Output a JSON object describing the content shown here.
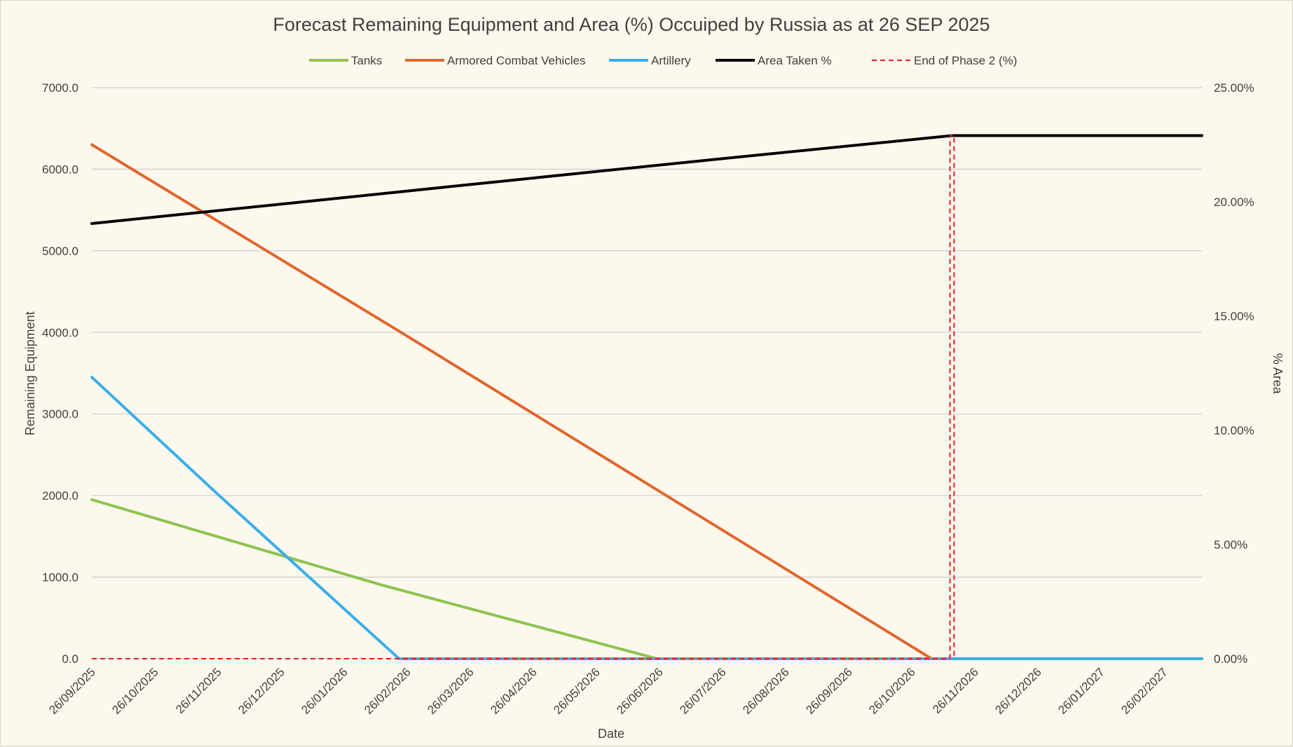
{
  "chart_data": {
    "type": "line",
    "title": "Forecast Remaining Equipment and Area (%) Occuiped by Russia as at 26 SEP 2025",
    "xlabel": "Date",
    "ylabel": "Remaining Equipment",
    "y2label": "% Area",
    "ylim": [
      0,
      7000
    ],
    "y2lim": [
      0,
      25
    ],
    "y_ticks": [
      "0.0",
      "1000.0",
      "2000.0",
      "3000.0",
      "4000.0",
      "5000.0",
      "6000.0",
      "7000.0"
    ],
    "y2_ticks": [
      "0.00%",
      "5.00%",
      "10.00%",
      "15.00%",
      "20.00%",
      "25.00%"
    ],
    "x_ticks": [
      "26/09/2025",
      "26/10/2025",
      "26/11/2025",
      "26/12/2025",
      "26/01/2026",
      "26/02/2026",
      "26/03/2026",
      "26/04/2026",
      "26/05/2026",
      "26/06/2026",
      "26/07/2026",
      "26/08/2026",
      "26/09/2026",
      "26/10/2026",
      "26/11/2026",
      "26/12/2026",
      "26/01/2027",
      "26/02/2027"
    ],
    "x_range_days": [
      0,
      542
    ],
    "legend_position": "top",
    "series": [
      {
        "name": "Tanks",
        "axis": "left",
        "color": "#8dc44e",
        "dash": false,
        "width": 4,
        "points": [
          [
            0,
            1950
          ],
          [
            142,
            900
          ],
          [
            276,
            0
          ],
          [
            542,
            0
          ]
        ]
      },
      {
        "name": "Armored Combat Vehicles",
        "axis": "left",
        "color": "#e0672c",
        "dash": false,
        "width": 4,
        "points": [
          [
            0,
            6300
          ],
          [
            151,
            4000
          ],
          [
            410,
            0
          ],
          [
            542,
            0
          ]
        ]
      },
      {
        "name": "Artillery",
        "axis": "left",
        "color": "#3aaee8",
        "dash": false,
        "width": 4,
        "points": [
          [
            0,
            3450
          ],
          [
            60,
            2050
          ],
          [
            150,
            0
          ],
          [
            542,
            0
          ]
        ]
      },
      {
        "name": "Area Taken %",
        "axis": "right",
        "color": "#000000",
        "dash": false,
        "width": 4,
        "points": [
          [
            0,
            19.05
          ],
          [
            100,
            19.97
          ],
          [
            200,
            20.9
          ],
          [
            300,
            21.82
          ],
          [
            420,
            22.9
          ],
          [
            542,
            22.9
          ]
        ]
      },
      {
        "name": "End of Phase 2 (%)",
        "axis": "right",
        "color": "#e01f1f",
        "dash": true,
        "width": 2,
        "points": [
          [
            0,
            0
          ],
          [
            419,
            0
          ],
          [
            419,
            22.9
          ],
          [
            421,
            22.9
          ],
          [
            421,
            0
          ]
        ]
      }
    ]
  }
}
